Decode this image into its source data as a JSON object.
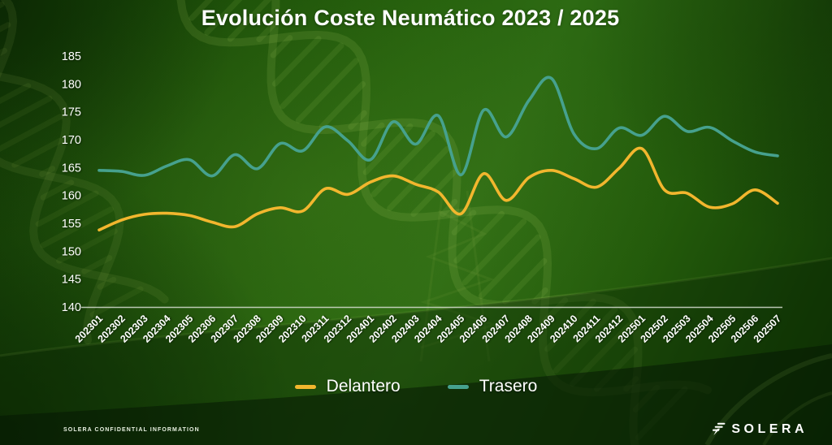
{
  "title": "Evolución Coste Neumático 2023 / 2025",
  "chart_data": {
    "type": "line",
    "title": "Evolución Coste Neumático 2023 / 2025",
    "x": [
      "202301",
      "202302",
      "202303",
      "202304",
      "202305",
      "202306",
      "202307",
      "202308",
      "202309",
      "202310",
      "202311",
      "202312",
      "202401",
      "202402",
      "202403",
      "202404",
      "202405",
      "202406",
      "202407",
      "202408",
      "202409",
      "202410",
      "202411",
      "202412",
      "202501",
      "202502",
      "202503",
      "202504",
      "202505",
      "202506",
      "202507"
    ],
    "series": [
      {
        "name": "Delantero",
        "color": "#F2B62E",
        "values": [
          153.8,
          155.6,
          156.6,
          156.8,
          156.4,
          155.2,
          154.4,
          156.7,
          157.8,
          157.2,
          161.2,
          160.2,
          162.4,
          163.5,
          162.0,
          160.6,
          156.7,
          163.9,
          159.1,
          163.2,
          164.5,
          163.0,
          161.5,
          164.9,
          168.4,
          161.0,
          160.4,
          157.9,
          158.5,
          161.0,
          158.6
        ]
      },
      {
        "name": "Trasero",
        "color": "#46A18E",
        "values": [
          164.5,
          164.3,
          163.6,
          165.3,
          166.4,
          163.5,
          167.3,
          164.8,
          169.3,
          168.0,
          172.3,
          169.8,
          166.4,
          173.2,
          169.2,
          174.3,
          163.7,
          175.3,
          170.5,
          177.0,
          181.0,
          171.0,
          168.4,
          172.1,
          170.8,
          174.2,
          171.5,
          172.2,
          169.8,
          167.8,
          167.1
        ]
      }
    ],
    "ylim": [
      140,
      185
    ],
    "ytick_step": 5,
    "yticks": [
      "140",
      "145",
      "150",
      "155",
      "160",
      "165",
      "170",
      "175",
      "180",
      "185"
    ],
    "grid": false,
    "smooth": true,
    "legend_position": "bottom-center"
  },
  "footer": {
    "confidential": "SOLERA CONFIDENTIAL INFORMATION",
    "brand": "SOLERA"
  },
  "colors": {
    "title_text": "#FFFFFF",
    "axis_text": "#FFFFFF",
    "axis_line": "#D7DED2",
    "background_green": "#27620E",
    "series_delantero": "#F2B62E",
    "series_trasero": "#46A18E"
  }
}
